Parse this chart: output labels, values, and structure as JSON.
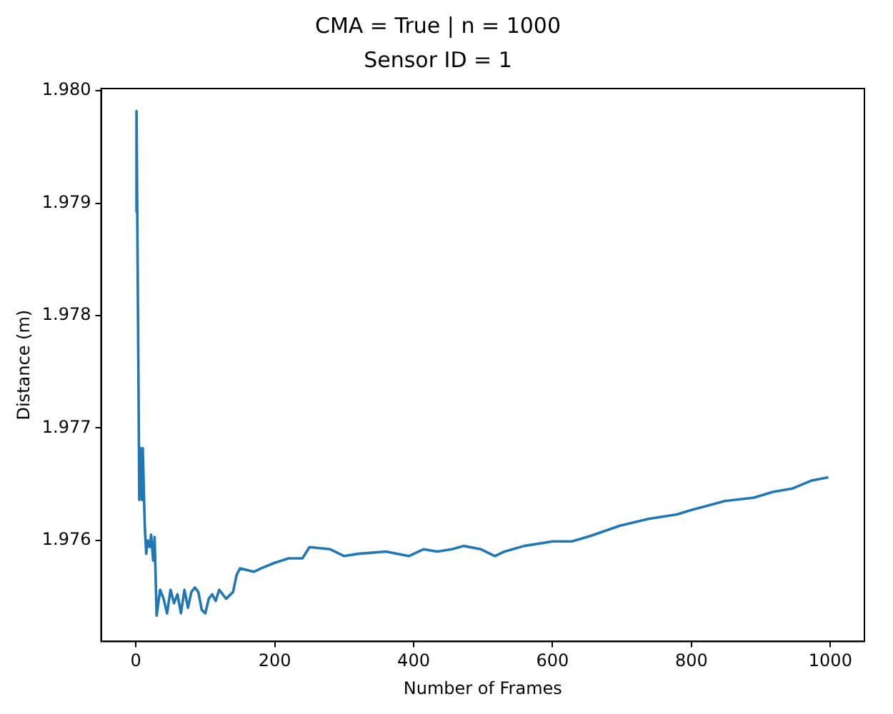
{
  "chart_data": {
    "type": "line",
    "title": "CMA = True | n = 1000",
    "subtitle": "Sensor ID = 1",
    "xlabel": "Number of Frames",
    "ylabel": "Distance (m)",
    "xlim": [
      -50,
      1049
    ],
    "xticks": [
      0,
      200,
      400,
      600,
      800,
      1000
    ],
    "ylim": [
      1.9751,
      1.98002
    ],
    "yticks": [
      1.976,
      1.977,
      1.978,
      1.979,
      {
        "value": 1.98,
        "label": "1.980"
      }
    ],
    "grid": false,
    "legend": false,
    "line_style": "solid",
    "series": [
      {
        "color": "#1f77b4",
        "x": [
          0,
          1,
          2,
          5,
          7,
          9,
          10,
          13,
          15,
          17,
          20,
          22,
          25,
          27,
          30,
          35,
          40,
          45,
          50,
          55,
          60,
          65,
          70,
          75,
          80,
          85,
          90,
          95,
          100,
          105,
          110,
          115,
          120,
          130,
          140,
          145,
          150,
          170,
          180,
          200,
          220,
          240,
          250,
          280,
          300,
          320,
          360,
          393,
          414,
          434,
          455,
          472,
          497,
          517,
          531,
          559,
          600,
          628,
          655,
          697,
          738,
          779,
          800,
          848,
          890,
          917,
          945,
          972,
          997
        ],
        "values": [
          1.97892,
          1.97982,
          1.979,
          1.97636,
          1.97682,
          1.97636,
          1.97682,
          1.97611,
          1.97588,
          1.976,
          1.97594,
          1.97605,
          1.97582,
          1.97603,
          1.97533,
          1.97556,
          1.97548,
          1.97535,
          1.97556,
          1.97544,
          1.97552,
          1.97535,
          1.97556,
          1.9754,
          1.97554,
          1.97558,
          1.97554,
          1.97538,
          1.97535,
          1.97548,
          1.97552,
          1.97546,
          1.97556,
          1.97548,
          1.97554,
          1.97569,
          1.97575,
          1.97572,
          1.97575,
          1.9758,
          1.97584,
          1.97584,
          1.97594,
          1.97592,
          1.97586,
          1.97588,
          1.9759,
          1.97586,
          1.97592,
          1.9759,
          1.97592,
          1.97595,
          1.97592,
          1.97586,
          1.9759,
          1.97595,
          1.97599,
          1.97599,
          1.97604,
          1.97613,
          1.97619,
          1.97623,
          1.97627,
          1.97635,
          1.97638,
          1.97643,
          1.97646,
          1.97653,
          1.97656
        ]
      }
    ]
  }
}
